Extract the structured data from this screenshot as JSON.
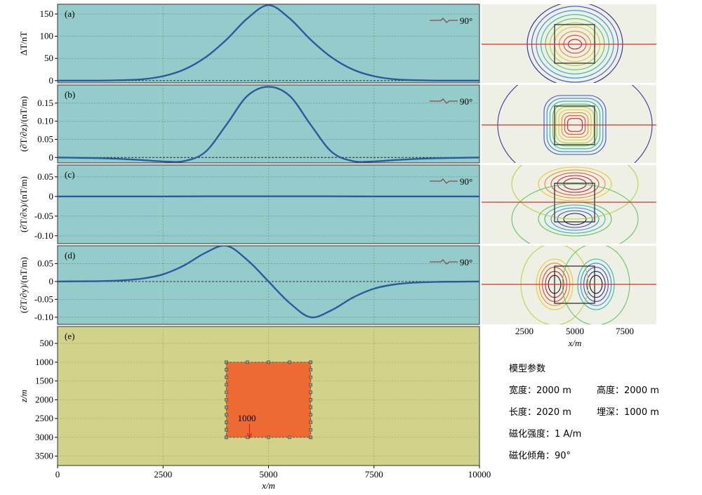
{
  "colors": {
    "panel_bg": "#93cccb",
    "section_bg": "#d1d38a",
    "curve": "#2d5a9e",
    "block": "#ee6a33",
    "map_bg": "#eef0e6",
    "profile_line": "#d0352b"
  },
  "chart_data": [
    {
      "type": "line",
      "panel": "(a)",
      "ylabel": "ΔT/nT",
      "legend": "90°",
      "x_ticks": [
        0,
        2500,
        5000,
        7500,
        10000
      ],
      "y_ticks": [
        0,
        50,
        100,
        150
      ],
      "y_tick_labels": [
        "0",
        "50",
        "100",
        "150"
      ],
      "ylim": [
        -5,
        172
      ],
      "grid": true,
      "x": [
        0,
        500,
        1000,
        1500,
        2000,
        2500,
        3000,
        3500,
        4000,
        4500,
        5000,
        5500,
        6000,
        6500,
        7000,
        7500,
        8000,
        8500,
        9000,
        9500,
        10000
      ],
      "values": [
        0,
        0,
        0,
        1,
        3,
        10,
        25,
        52,
        92,
        140,
        170,
        140,
        92,
        52,
        25,
        10,
        3,
        1,
        0,
        0,
        0
      ]
    },
    {
      "type": "line",
      "panel": "(b)",
      "ylabel": "(∂T/∂z)/(nT/m)",
      "legend": "90°",
      "x_ticks": [
        0,
        2500,
        5000,
        7500,
        10000
      ],
      "y_ticks": [
        0,
        0.05,
        0.1,
        0.15
      ],
      "y_tick_labels": [
        "0",
        "0.05",
        "0.10",
        "0.15"
      ],
      "ylim": [
        -0.015,
        0.2
      ],
      "grid": true,
      "x": [
        0,
        500,
        1000,
        1500,
        2000,
        2500,
        3000,
        3500,
        4000,
        4500,
        5000,
        5500,
        6000,
        6500,
        7000,
        7500,
        8000,
        8500,
        9000,
        9500,
        10000
      ],
      "values": [
        0,
        -0.001,
        -0.002,
        -0.004,
        -0.007,
        -0.011,
        -0.01,
        0.015,
        0.09,
        0.17,
        0.195,
        0.17,
        0.09,
        0.015,
        -0.01,
        -0.011,
        -0.007,
        -0.004,
        -0.002,
        -0.001,
        0
      ]
    },
    {
      "type": "line",
      "panel": "(c)",
      "ylabel": "(∂T/∂x)/(nT/m)",
      "legend": "90°",
      "x_ticks": [
        0,
        2500,
        5000,
        7500,
        10000
      ],
      "y_ticks": [
        -0.1,
        -0.05,
        0,
        0.05
      ],
      "y_tick_labels": [
        "-0.10",
        "-0.05",
        "0",
        "0.05"
      ],
      "ylim": [
        -0.12,
        0.08
      ],
      "grid": true,
      "x": [
        0,
        2500,
        3500,
        5000,
        6500,
        7500,
        10000
      ],
      "values": [
        0,
        0,
        0.0003,
        0.0003,
        0.0003,
        0,
        0
      ]
    },
    {
      "type": "line",
      "panel": "(d)",
      "ylabel": "(∂T/∂y)/(nT/m)",
      "legend": "90°",
      "x_ticks": [
        0,
        2500,
        5000,
        7500,
        10000
      ],
      "y_ticks": [
        -0.1,
        -0.05,
        0,
        0.05
      ],
      "y_tick_labels": [
        "-0.10",
        "-0.05",
        "0",
        "0.05"
      ],
      "ylim": [
        -0.12,
        0.1
      ],
      "grid": true,
      "x": [
        0,
        500,
        1000,
        1500,
        2000,
        2500,
        3000,
        3500,
        4000,
        4500,
        5000,
        5500,
        6000,
        6500,
        7000,
        7500,
        8000,
        8500,
        9000,
        9500,
        10000
      ],
      "values": [
        0,
        0.0005,
        0.001,
        0.003,
        0.008,
        0.02,
        0.045,
        0.08,
        0.1,
        0.06,
        0,
        -0.06,
        -0.1,
        -0.08,
        -0.045,
        -0.02,
        -0.008,
        -0.003,
        -0.001,
        -0.0005,
        0
      ]
    },
    {
      "type": "area",
      "panel": "(e)",
      "ylabel": "z/m",
      "xlabel": "x/m",
      "x_ticks": [
        0,
        2500,
        5000,
        7500,
        10000
      ],
      "x_tick_labels": [
        "0",
        "2500",
        "5000",
        "7500",
        "10000"
      ],
      "y_ticks": [
        500,
        1000,
        1500,
        2000,
        2500,
        3000,
        3500
      ],
      "y_tick_labels": [
        "500",
        "1000",
        "1500",
        "2000",
        "2500",
        "3000",
        "3500"
      ],
      "xlim": [
        0,
        10000
      ],
      "ylim": [
        3750,
        50
      ],
      "grid": true,
      "block": {
        "x0": 4000,
        "x1": 6000,
        "z0": 1000,
        "z1": 3000
      },
      "annotation": "1000"
    },
    {
      "type": "heatmap",
      "description_panels": 4,
      "x_ticks": [
        2500,
        5000,
        7500
      ],
      "x_tick_labels": [
        "2500",
        "5000",
        "7500"
      ],
      "xlabel": "x/m"
    }
  ],
  "params": {
    "title": "模型参数",
    "width_label": "宽度：2000 m",
    "height_label": "高度：2000 m",
    "length_label": "长度：2020 m",
    "depth_label": "埋深：1000 m",
    "magnetization_label": "磁化强度：1 A/m",
    "inclination_label": "磁化倾角：90°"
  }
}
